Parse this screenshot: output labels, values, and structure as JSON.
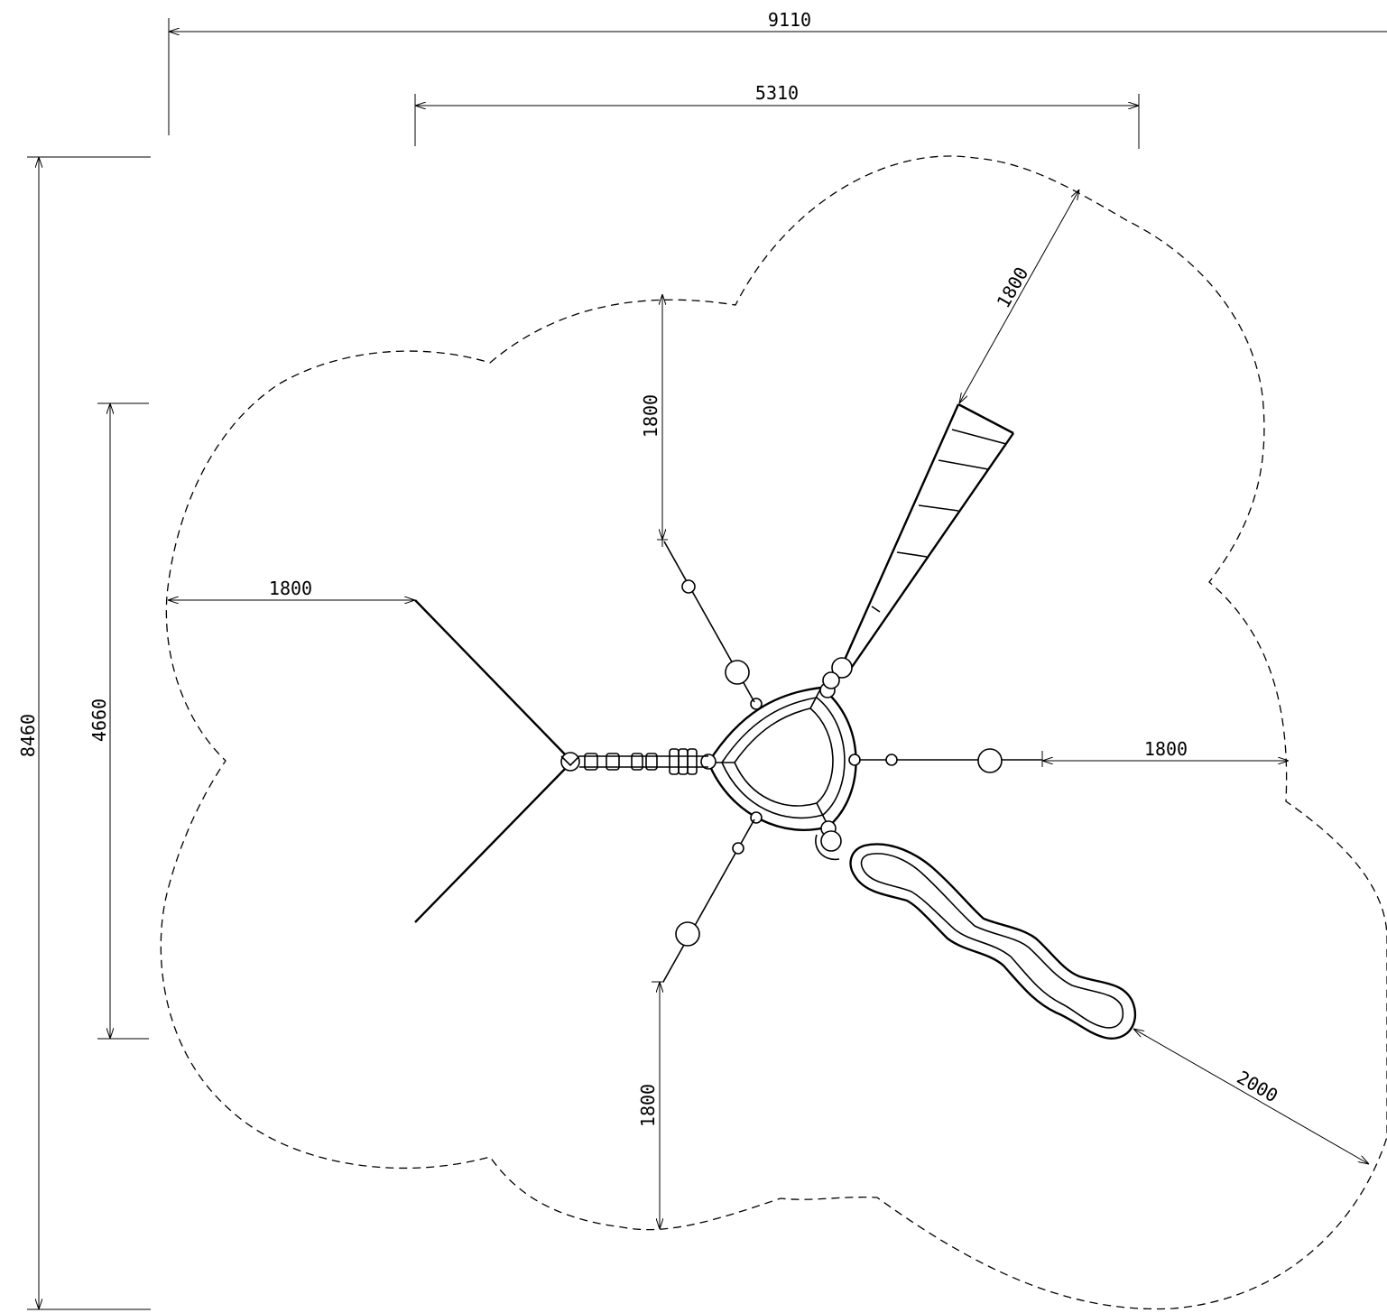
{
  "dimensions": {
    "overall_width": "9110",
    "inner_width": "5310",
    "overall_height": "8460",
    "inner_height": "4660",
    "top_clearance": "1800",
    "left_clearance": "1800",
    "right_clearance": "1800",
    "bottom_clearance": "1800",
    "ladder_clearance": "1800",
    "slide_clearance": "2000"
  },
  "colors": {
    "line": "#000000",
    "background": "#ffffff"
  }
}
